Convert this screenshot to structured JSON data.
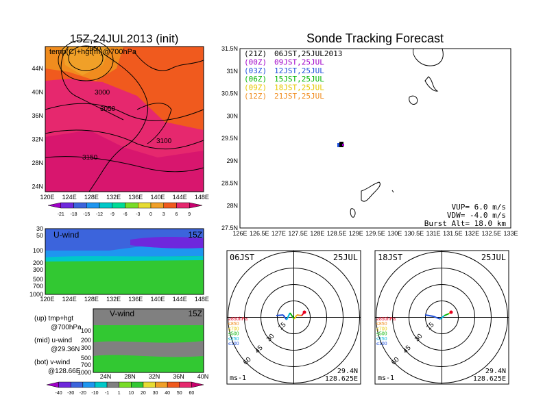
{
  "left_panel": {
    "title": "15Z,24JUL2013 (init)",
    "map_label": "temp(C)+hgt(m)@700hPa",
    "lat_ticks": [
      "44N",
      "40N",
      "36N",
      "32N",
      "28N",
      "24N"
    ],
    "lon_ticks": [
      "120E",
      "124E",
      "128E",
      "132E",
      "136E",
      "140E",
      "144E",
      "148E"
    ],
    "contour_labels": [
      "2950",
      "3000",
      "3050",
      "3100",
      "3150"
    ],
    "temp_colorbar": {
      "labels": [
        "-21",
        "-18",
        "-15",
        "-12",
        "-9",
        "-6",
        "-3",
        "0",
        "3",
        "6",
        "9"
      ],
      "colors": [
        "#a000c8",
        "#6e28dc",
        "#3c64dc",
        "#1e96f0",
        "#00c8c8",
        "#00dc96",
        "#78dc28",
        "#e6dc32",
        "#f0a028",
        "#f05a1e",
        "#e6286e",
        "#c8006e"
      ]
    }
  },
  "u_wind_panel": {
    "label": "U-wind",
    "time": "15Z",
    "p_ticks": [
      "30",
      "50",
      "100",
      "200",
      "300",
      "500",
      "700",
      "1000"
    ],
    "lon_ticks": [
      "120E",
      "124E",
      "128E",
      "132E",
      "136E",
      "140E",
      "144E",
      "148E"
    ]
  },
  "v_wind_panel": {
    "label": "V-wind",
    "time": "15Z",
    "p_ticks": [
      "100",
      "200",
      "300",
      "500",
      "700",
      "1000"
    ],
    "lat_ticks": [
      "24N",
      "28N",
      "32N",
      "36N",
      "40N"
    ]
  },
  "legend_notes": {
    "up": "(up) tmp+hgt",
    "up_sub": "@700hPa",
    "mid": "(mid) u-wind",
    "mid_sub": "@29.36N",
    "bot": "(bot) v-wind",
    "bot_sub": "@128.66E"
  },
  "wind_colorbar": {
    "labels": [
      "-40",
      "-30",
      "-20",
      "-10",
      "-1",
      "1",
      "10",
      "20",
      "30",
      "40",
      "50",
      "60"
    ],
    "colors": [
      "#a000c8",
      "#6e28dc",
      "#3c64dc",
      "#1e96f0",
      "#00c8c8",
      "#808080",
      "#78dc28",
      "#32c832",
      "#e6dc32",
      "#f0a028",
      "#f05a1e",
      "#e6286e",
      "#c8006e"
    ]
  },
  "tracking_panel": {
    "title": "Sonde Tracking Forecast",
    "lat_ticks": [
      "31.5N",
      "31N",
      "30.5N",
      "30N",
      "29.5N",
      "29N",
      "28.5N",
      "28N",
      "27.5N"
    ],
    "lon_ticks": [
      "126E",
      "126.5E",
      "127E",
      "127.5E",
      "128E",
      "128.5E",
      "129E",
      "129.5E",
      "130E",
      "130.5E",
      "131E",
      "131.5E",
      "132E",
      "132.5E",
      "133E"
    ],
    "launches": [
      {
        "code": "(21Z)",
        "time": "06JST,25JUL2013",
        "color": "#000000"
      },
      {
        "code": "(00Z)",
        "time": "09JST,25JUL",
        "color": "#a000c8"
      },
      {
        "code": "(03Z)",
        "time": "12JST,25JUL",
        "color": "#1e50dc"
      },
      {
        "code": "(06Z)",
        "time": "15JST,25JUL",
        "color": "#00b400"
      },
      {
        "code": "(09Z)",
        "time": "18JST,25JUL",
        "color": "#e6c800"
      },
      {
        "code": "(12Z)",
        "time": "21JST,25JUL",
        "color": "#f08c1e"
      }
    ],
    "vup": "VUP= 6.0 m/s",
    "vdw": "VDW= -4.0 m/s",
    "burst": "Burst Alt= 18.0 km"
  },
  "polar_panels": [
    {
      "time": "06JST",
      "date": "25JUL",
      "lat": "29.4N",
      "lon": "128.625E",
      "unit": "ms-1",
      "ring_labels": [
        "15",
        "30",
        "45",
        "60"
      ]
    },
    {
      "time": "18JST",
      "date": "25JUL",
      "lat": "29.4N",
      "lon": "128.625E",
      "unit": "ms-1",
      "ring_labels": [
        "15",
        "30",
        "45",
        "60"
      ]
    }
  ],
  "polar_levels": [
    {
      "label": "≥850hPa",
      "color": "#e6001e"
    },
    {
      "label": "≤850",
      "color": "#f08c1e"
    },
    {
      "label": "≤700",
      "color": "#e6c800"
    },
    {
      "label": "≤500",
      "color": "#00b400"
    },
    {
      "label": "≤250",
      "color": "#00b4dc"
    },
    {
      "label": "≤100",
      "color": "#1e50dc"
    }
  ]
}
